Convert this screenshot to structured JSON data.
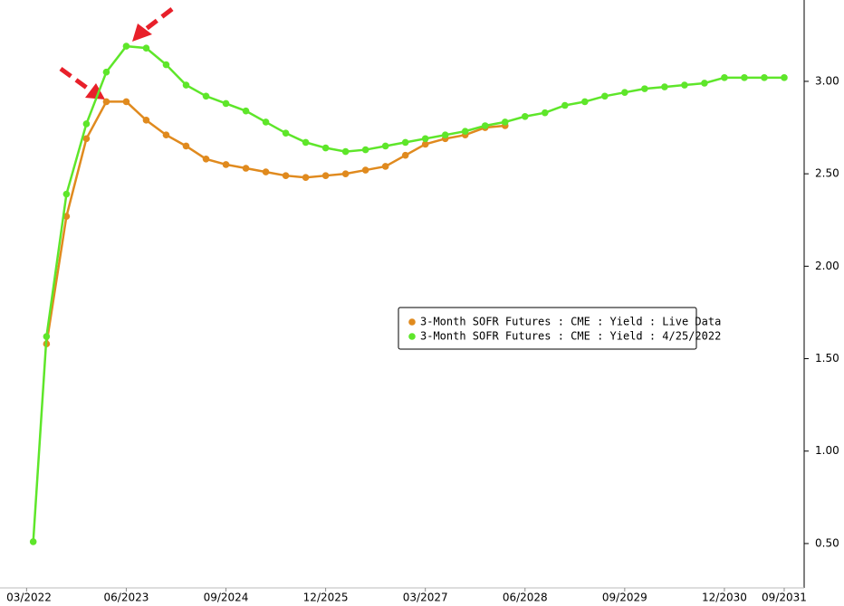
{
  "chart_data": {
    "type": "line",
    "xlim": [
      "11/2021",
      "12/2031"
    ],
    "xticks": [
      "03/2022",
      "06/2023",
      "09/2024",
      "12/2025",
      "03/2027",
      "06/2028",
      "09/2029",
      "12/2030",
      "09/2031"
    ],
    "ylim": [
      0.26,
      3.44
    ],
    "yticks": [
      {
        "value": 0.5,
        "label": "0.50"
      },
      {
        "value": 1,
        "label": "1.00"
      },
      {
        "value": 1.5,
        "label": "1.50"
      },
      {
        "value": 2,
        "label": "2.00"
      },
      {
        "value": 2.5,
        "label": "2.50"
      },
      {
        "value": 3,
        "label": "3.00"
      }
    ],
    "legend": "center-right",
    "series": [
      {
        "name": "3-Month SOFR Futures : CME : Yield : Live Data",
        "color": "#e08a1e",
        "x": [
          "06/2022",
          "09/2022",
          "12/2022",
          "03/2023",
          "06/2023",
          "09/2023",
          "12/2023",
          "03/2024",
          "06/2024",
          "09/2024",
          "12/2024",
          "03/2025",
          "06/2025",
          "09/2025",
          "12/2025",
          "03/2026",
          "06/2026",
          "09/2026",
          "12/2026",
          "03/2027",
          "06/2027",
          "09/2027",
          "12/2027",
          "03/2028"
        ],
        "values": [
          1.58,
          2.27,
          2.69,
          2.89,
          2.89,
          2.79,
          2.71,
          2.65,
          2.58,
          2.55,
          2.53,
          2.51,
          2.49,
          2.48,
          2.49,
          2.5,
          2.52,
          2.54,
          2.6,
          2.66,
          2.69,
          2.71,
          2.75,
          2.76
        ]
      },
      {
        "name": "3-Month SOFR Futures : CME : Yield : 4/25/2022",
        "color": "#5ee62a",
        "x": [
          "04/2022",
          "06/2022",
          "09/2022",
          "12/2022",
          "03/2023",
          "06/2023",
          "09/2023",
          "12/2023",
          "03/2024",
          "06/2024",
          "09/2024",
          "12/2024",
          "03/2025",
          "06/2025",
          "09/2025",
          "12/2025",
          "03/2026",
          "06/2026",
          "09/2026",
          "12/2026",
          "03/2027",
          "06/2027",
          "09/2027",
          "12/2027",
          "03/2028",
          "06/2028",
          "09/2028",
          "12/2028",
          "03/2029",
          "06/2029",
          "09/2029",
          "12/2029",
          "03/2030",
          "06/2030",
          "09/2030",
          "12/2030",
          "03/2031",
          "06/2031",
          "09/2031"
        ],
        "values": [
          0.51,
          1.62,
          2.39,
          2.77,
          3.05,
          3.19,
          3.18,
          3.09,
          2.98,
          2.92,
          2.88,
          2.84,
          2.78,
          2.72,
          2.67,
          2.64,
          2.62,
          2.63,
          2.65,
          2.67,
          2.69,
          2.71,
          2.73,
          2.76,
          2.78,
          2.81,
          2.83,
          2.87,
          2.89,
          2.92,
          2.94,
          2.96,
          2.97,
          2.98,
          2.99,
          3.02,
          3.02,
          3.02,
          3.02
        ]
      }
    ]
  }
}
